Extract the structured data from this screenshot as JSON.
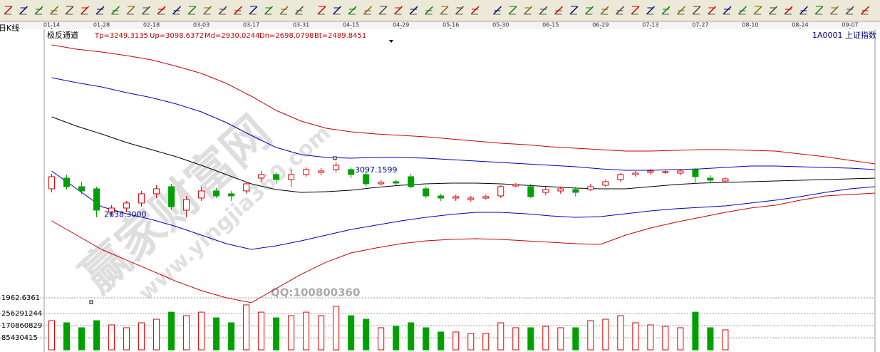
{
  "header": {
    "period": "日K线",
    "indicator": "极反通道",
    "indicator_values": [
      "Tp=3249.3135",
      "Up=3098.6372",
      "Md=2930.0244",
      "Dn=2698.0798",
      "Bt=2489.8451"
    ],
    "symbol": "1A0001 上证指数"
  },
  "watermark": {
    "site": "赢家财富网",
    "url": "www.yingjia360.com",
    "qq": "QQ:100800360"
  },
  "chart_data": [
    {
      "type": "candlestick",
      "xlim": [
        -1.5,
        165
      ],
      "xticks": [
        {
          "value": 0,
          "label": "01-14"
        },
        {
          "value": 10,
          "label": "01-28"
        },
        {
          "value": 20,
          "label": "02-18"
        },
        {
          "value": 30,
          "label": "03-03"
        },
        {
          "value": 40,
          "label": "03-17"
        },
        {
          "value": 50,
          "label": "03-31"
        },
        {
          "value": 60,
          "label": "04-15"
        },
        {
          "value": 70,
          "label": "04-29"
        },
        {
          "value": 80,
          "label": "05-16"
        },
        {
          "value": 90,
          "label": "05-30"
        },
        {
          "value": 100,
          "label": "06-15"
        },
        {
          "value": 110,
          "label": "06-29"
        },
        {
          "value": 120,
          "label": "07-13"
        },
        {
          "value": 130,
          "label": "07-27"
        },
        {
          "value": 140,
          "label": "08-10"
        },
        {
          "value": 150,
          "label": "08-24"
        },
        {
          "value": 160,
          "label": "09-07"
        }
      ],
      "ylim": [
        1962.6361,
        4219
      ],
      "yticks": [
        1962.6361
      ],
      "up_color": "#e00000",
      "down_color": "#00a000",
      "x": [
        0,
        3,
        6,
        9,
        12,
        15,
        18,
        21,
        24,
        27,
        30,
        33,
        36,
        39,
        42,
        45,
        48,
        51,
        54,
        57,
        60,
        63,
        66,
        69,
        72,
        75,
        78,
        81,
        84,
        87,
        90,
        93,
        96,
        99,
        102,
        105,
        108,
        111,
        114,
        117,
        120,
        123,
        126,
        129,
        132,
        135
      ],
      "open": [
        2881,
        2971,
        2899,
        2881,
        2683,
        2719,
        2761,
        2839,
        2899,
        2701,
        2803,
        2863,
        2839,
        2863,
        2971,
        3001,
        2959,
        3001,
        3019,
        3043,
        3043,
        3001,
        2923,
        2941,
        2983,
        2881,
        2821,
        2803,
        2791,
        2803,
        2821,
        2905,
        2899,
        2851,
        2863,
        2875,
        2875,
        2911,
        2959,
        3001,
        3019,
        3019,
        3013,
        3043,
        2971,
        2947
      ],
      "high": [
        3007,
        3001,
        2941,
        2899,
        2743,
        2779,
        2863,
        2911,
        2923,
        2821,
        2899,
        2887,
        2863,
        2941,
        3031,
        3019,
        3043,
        3061,
        3055,
        3103,
        3061,
        3031,
        2953,
        2959,
        3007,
        2899,
        2839,
        2833,
        2821,
        2833,
        2911,
        2929,
        2923,
        2899,
        2899,
        2899,
        2923,
        2959,
        3013,
        3031,
        3049,
        3043,
        3043,
        3055,
        2995,
        2977
      ],
      "low": [
        2851,
        2875,
        2839,
        2641,
        2653,
        2683,
        2731,
        2803,
        2701,
        2641,
        2779,
        2803,
        2779,
        2839,
        2941,
        2923,
        2899,
        2983,
        2995,
        3019,
        2971,
        2899,
        2911,
        2911,
        2887,
        2803,
        2779,
        2779,
        2773,
        2791,
        2803,
        2893,
        2803,
        2827,
        2839,
        2815,
        2863,
        2899,
        2941,
        2983,
        3001,
        3007,
        2995,
        2923,
        2935,
        2941
      ],
      "close": [
        2983,
        2899,
        2863,
        2701,
        2719,
        2761,
        2839,
        2881,
        2731,
        2791,
        2863,
        2821,
        2821,
        2923,
        3001,
        2959,
        3001,
        3043,
        3031,
        3079,
        3001,
        2923,
        2935,
        2929,
        2899,
        2821,
        2803,
        2815,
        2803,
        2815,
        2899,
        2917,
        2815,
        2875,
        2881,
        2851,
        2899,
        2941,
        3001,
        3013,
        3031,
        3025,
        3031,
        2983,
        2953,
        2965
      ],
      "lines_x": [
        0,
        5,
        10,
        15,
        20,
        25,
        30,
        35,
        40,
        45,
        50,
        55,
        60,
        65,
        70,
        75,
        80,
        85,
        90,
        95,
        100,
        105,
        110,
        115,
        120,
        125,
        130,
        135,
        140,
        145,
        150,
        155,
        160,
        165
      ],
      "lines": [
        {
          "color": "#cc0000",
          "values": [
            4093,
            4057,
            4033,
            4003,
            3967,
            3913,
            3853,
            3769,
            3661,
            3541,
            3451,
            3391,
            3361,
            3343,
            3331,
            3319,
            3301,
            3283,
            3265,
            3253,
            3235,
            3223,
            3211,
            3199,
            3199,
            3205,
            3211,
            3211,
            3205,
            3199,
            3175,
            3151,
            3121,
            3091
          ]
        },
        {
          "color": "#0000c0",
          "values": [
            3817,
            3775,
            3739,
            3691,
            3649,
            3595,
            3529,
            3439,
            3331,
            3229,
            3169,
            3145,
            3139,
            3145,
            3145,
            3139,
            3127,
            3115,
            3103,
            3091,
            3079,
            3067,
            3049,
            3037,
            3037,
            3043,
            3049,
            3061,
            3073,
            3073,
            3067,
            3061,
            3055,
            3043
          ]
        },
        {
          "color": "#000000",
          "values": [
            3487,
            3409,
            3343,
            3271,
            3211,
            3151,
            3079,
            3001,
            2923,
            2875,
            2851,
            2857,
            2869,
            2893,
            2911,
            2923,
            2929,
            2929,
            2923,
            2911,
            2899,
            2887,
            2881,
            2881,
            2899,
            2917,
            2929,
            2935,
            2941,
            2947,
            2953,
            2959,
            2965,
            2971
          ]
        },
        {
          "color": "#0000c0",
          "values": [
            3031,
            2881,
            2731,
            2671,
            2623,
            2563,
            2491,
            2419,
            2371,
            2401,
            2443,
            2491,
            2539,
            2575,
            2611,
            2641,
            2665,
            2683,
            2683,
            2671,
            2653,
            2641,
            2647,
            2671,
            2695,
            2713,
            2725,
            2737,
            2761,
            2785,
            2815,
            2851,
            2881,
            2899
          ]
        },
        {
          "color": "#cc0000",
          "values": [
            2611,
            2491,
            2371,
            2281,
            2191,
            2101,
            2023,
            1963,
            1921,
            2041,
            2161,
            2263,
            2341,
            2383,
            2419,
            2443,
            2455,
            2461,
            2455,
            2443,
            2431,
            2419,
            2413,
            2491,
            2551,
            2599,
            2641,
            2683,
            2719,
            2743,
            2785,
            2821,
            2833,
            2845
          ]
        }
      ],
      "annotations": [
        {
          "value": 3097.1599,
          "label": "3097.1599"
        },
        {
          "value": 2638.3,
          "label": "2638.3000"
        }
      ]
    },
    {
      "type": "bar",
      "xlim": [
        -1.5,
        165
      ],
      "ylim": [
        0,
        341721660
      ],
      "yticks": [
        85430415,
        170860829,
        256291244
      ],
      "x": [
        0,
        3,
        6,
        9,
        12,
        15,
        18,
        21,
        24,
        27,
        30,
        33,
        36,
        39,
        42,
        45,
        48,
        51,
        54,
        57,
        60,
        63,
        66,
        69,
        72,
        75,
        78,
        81,
        84,
        87,
        90,
        93,
        96,
        99,
        102,
        105,
        108,
        111,
        114,
        117,
        120,
        123,
        126,
        129,
        132,
        135
      ],
      "values": [
        206000000,
        191000000,
        156000000,
        206000000,
        176000000,
        156000000,
        191000000,
        216000000,
        266000000,
        241000000,
        266000000,
        226000000,
        191000000,
        317000000,
        266000000,
        226000000,
        241000000,
        266000000,
        241000000,
        307000000,
        241000000,
        216000000,
        156000000,
        166000000,
        191000000,
        156000000,
        126000000,
        126000000,
        116000000,
        116000000,
        191000000,
        156000000,
        156000000,
        166000000,
        156000000,
        156000000,
        206000000,
        216000000,
        241000000,
        191000000,
        176000000,
        166000000,
        156000000,
        266000000,
        156000000,
        141000000
      ]
    }
  ]
}
